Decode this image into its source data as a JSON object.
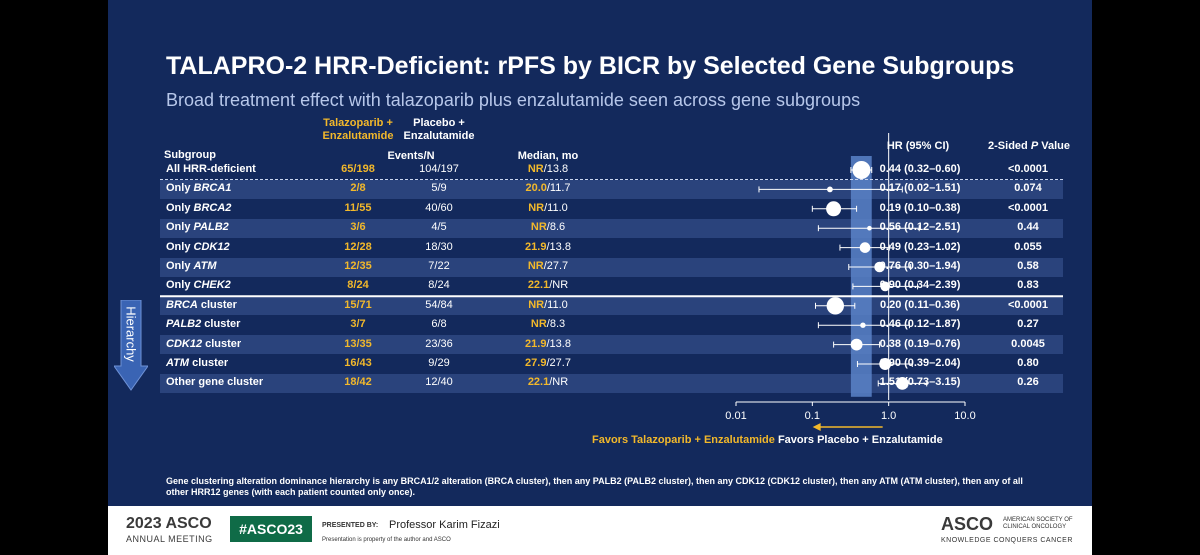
{
  "title": "TALAPRO-2 HRR-Deficient: rPFS by BICR by Selected Gene Subgroups",
  "subtitle": "Broad treatment effect with talazoparib plus enzalutamide seen across gene subgroups",
  "headers": {
    "arm1": "Talazoparib +\nEnzalutamide",
    "arm2": "Placebo +\nEnzalutamide",
    "subgroup": "Subgroup",
    "events": "Events/N",
    "median": "Median, mo",
    "hr": "HR (95% CI)",
    "pvalue_prefix": "2-Sided ",
    "pvalue_italic": "P",
    "pvalue_suffix": " Value"
  },
  "hierarchy_label": "Hierarchy",
  "favors_left": "Favors Talazoparib + Enzalutamide",
  "favors_right": "Favors Placebo + Enzalutamide",
  "footnote": "Gene clustering alteration dominance hierarchy is any BRCA1/2 alteration (BRCA cluster), then any PALB2 (PALB2 cluster), then any CDK12 (CDK12 cluster), then any ATM (ATM cluster), then any of all other HRR12 genes (with each patient counted only once).",
  "footer": {
    "year": "2023",
    "asco": "ASCO",
    "annual_meeting": "ANNUAL MEETING",
    "hashtag": "#ASCO23",
    "presented_by_label": "PRESENTED BY:",
    "presenter": "Professor Karim Fizazi",
    "property_note": "Presentation is property of the author and ASCO",
    "asco_logo": "ASCO",
    "society_line1": "AMERICAN SOCIETY OF",
    "society_line2": "CLINICAL ONCOLOGY",
    "tagline": "KNOWLEDGE CONQUERS CANCER"
  },
  "colors": {
    "gold": "#f2b82b",
    "band": "#5a82c8",
    "bg": "#13295c"
  },
  "chart_data": {
    "type": "forest",
    "x_scale": "log",
    "xlim": [
      0.01,
      10.0
    ],
    "ticks": [
      "0.01",
      "0.1",
      "1.0",
      "10.0"
    ],
    "reference_line": 1.0,
    "overall_band": [
      0.32,
      0.6
    ],
    "rows": [
      {
        "prefix": "",
        "gene": "",
        "suffix": "All HRR-deficient",
        "t_events": "65/198",
        "p_events": "104/197",
        "t_med": "NR",
        "p_med": "/13.8",
        "hr_text": "0.44 (0.32–0.60)",
        "p": "<0.0001",
        "hr": 0.44,
        "lo": 0.32,
        "hi": 0.6
      },
      {
        "prefix": "Only ",
        "gene": "BRCA1",
        "suffix": "",
        "t_events": "2/8",
        "p_events": "5/9",
        "t_med": "20.0",
        "p_med": "/11.7",
        "hr_text": "0.17 (0.02–1.51)",
        "p": "0.074",
        "hr": 0.17,
        "lo": 0.02,
        "hi": 1.51
      },
      {
        "prefix": "Only ",
        "gene": "BRCA2",
        "suffix": "",
        "t_events": "11/55",
        "p_events": "40/60",
        "t_med": "NR",
        "p_med": "/11.0",
        "hr_text": "0.19 (0.10–0.38)",
        "p": "<0.0001",
        "hr": 0.19,
        "lo": 0.1,
        "hi": 0.38
      },
      {
        "prefix": "Only ",
        "gene": "PALB2",
        "suffix": "",
        "t_events": "3/6",
        "p_events": "4/5",
        "t_med": "NR",
        "p_med": "/8.6",
        "hr_text": "0.56 (0.12–2.51)",
        "p": "0.44",
        "hr": 0.56,
        "lo": 0.12,
        "hi": 2.51
      },
      {
        "prefix": "Only ",
        "gene": "CDK12",
        "suffix": "",
        "t_events": "12/28",
        "p_events": "18/30",
        "t_med": "21.9",
        "p_med": "/13.8",
        "hr_text": "0.49 (0.23–1.02)",
        "p": "0.055",
        "hr": 0.49,
        "lo": 0.23,
        "hi": 1.02
      },
      {
        "prefix": "Only ",
        "gene": "ATM",
        "suffix": "",
        "t_events": "12/35",
        "p_events": "7/22",
        "t_med": "NR",
        "p_med": "/27.7",
        "hr_text": "0.76 (0.30–1.94)",
        "p": "0.58",
        "hr": 0.76,
        "lo": 0.3,
        "hi": 1.94
      },
      {
        "prefix": "Only ",
        "gene": "CHEK2",
        "suffix": "",
        "t_events": "8/24",
        "p_events": "8/24",
        "t_med": "22.1",
        "p_med": "/NR",
        "hr_text": "0.90 (0.34–2.39)",
        "p": "0.83",
        "hr": 0.9,
        "lo": 0.34,
        "hi": 2.39
      },
      {
        "prefix": "",
        "gene": "BRCA",
        "suffix": " cluster",
        "t_events": "15/71",
        "p_events": "54/84",
        "t_med": "NR",
        "p_med": "/11.0",
        "hr_text": "0.20 (0.11–0.36)",
        "p": "<0.0001",
        "hr": 0.2,
        "lo": 0.11,
        "hi": 0.36
      },
      {
        "prefix": "",
        "gene": "PALB2",
        "suffix": " cluster",
        "t_events": "3/7",
        "p_events": "6/8",
        "t_med": "NR",
        "p_med": "/8.3",
        "hr_text": "0.46 (0.12–1.87)",
        "p": "0.27",
        "hr": 0.46,
        "lo": 0.12,
        "hi": 1.87
      },
      {
        "prefix": "",
        "gene": "CDK12",
        "suffix": " cluster",
        "t_events": "13/35",
        "p_events": "23/36",
        "t_med": "21.9",
        "p_med": "/13.8",
        "hr_text": "0.38 (0.19–0.76)",
        "p": "0.0045",
        "hr": 0.38,
        "lo": 0.19,
        "hi": 0.76
      },
      {
        "prefix": "",
        "gene": "ATM",
        "suffix": " cluster",
        "t_events": "16/43",
        "p_events": "9/29",
        "t_med": "27.9",
        "p_med": "/27.7",
        "hr_text": "0.90 (0.39–2.04)",
        "p": "0.80",
        "hr": 0.9,
        "lo": 0.39,
        "hi": 2.04
      },
      {
        "prefix": "",
        "gene": "",
        "suffix": "Other gene cluster",
        "t_events": "18/42",
        "p_events": "12/40",
        "t_med": "22.1",
        "p_med": "/NR",
        "hr_text": "1.51 (0.73–3.15)",
        "p": "0.26",
        "hr": 1.51,
        "lo": 0.73,
        "hi": 3.15
      }
    ]
  }
}
